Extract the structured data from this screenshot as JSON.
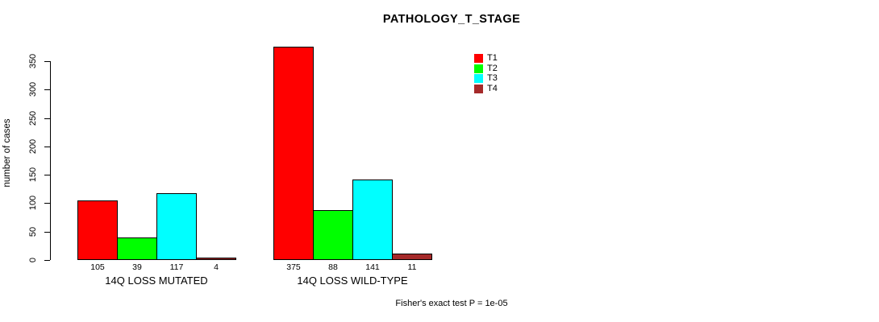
{
  "chart_data": {
    "type": "bar",
    "title": "PATHOLOGY_T_STAGE",
    "ylabel": "number of cases",
    "xlabel": "",
    "ylim": [
      0,
      350
    ],
    "yticks": [
      0,
      50,
      100,
      150,
      200,
      250,
      300,
      350
    ],
    "grid": false,
    "legend_position": "top-right",
    "series": [
      {
        "name": "T1",
        "color": "#ff0000"
      },
      {
        "name": "T2",
        "color": "#00ff00"
      },
      {
        "name": "T3",
        "color": "#00ffff"
      },
      {
        "name": "T4",
        "color": "#a52a2a"
      }
    ],
    "groups": [
      {
        "label": "14Q LOSS MUTATED",
        "values": [
          105,
          39,
          117,
          4
        ]
      },
      {
        "label": "14Q LOSS WILD-TYPE",
        "values": [
          375,
          88,
          141,
          11
        ]
      }
    ],
    "annotation": "Fisher's exact test P = 1e-05"
  }
}
